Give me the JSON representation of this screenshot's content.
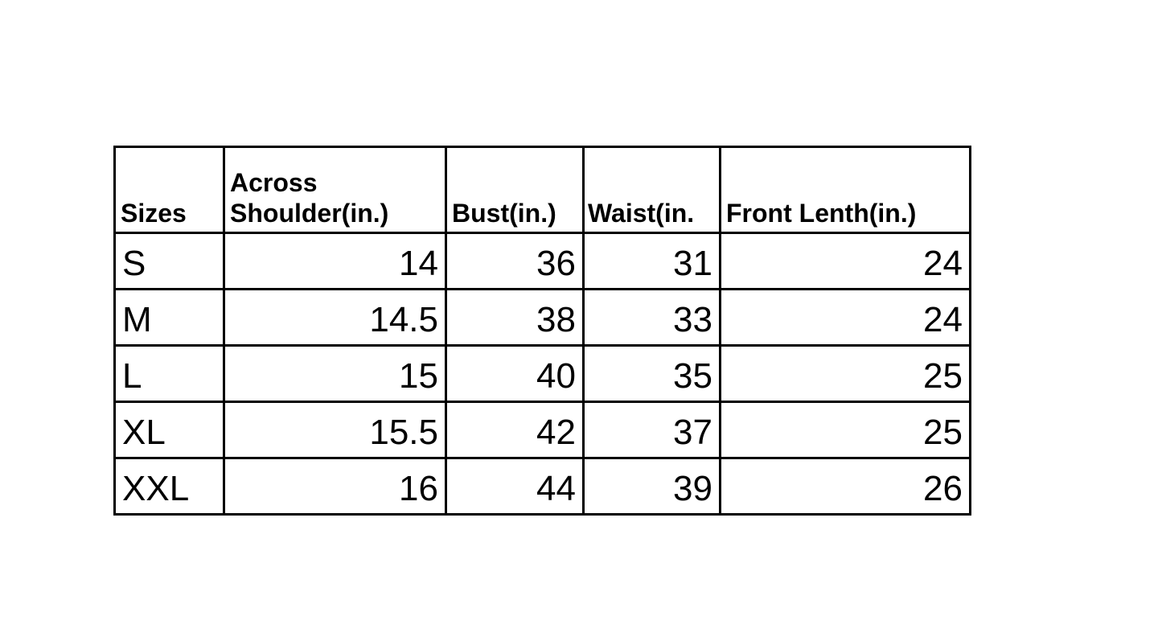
{
  "table": {
    "headers": [
      {
        "lines": [
          "Sizes"
        ]
      },
      {
        "lines": [
          "Across",
          "Shoulder(in.)"
        ]
      },
      {
        "lines": [
          "Bust(in.)"
        ]
      },
      {
        "lines": [
          "Waist(in."
        ]
      },
      {
        "lines": [
          "Front Lenth(in.)"
        ]
      }
    ],
    "rows": [
      [
        "S",
        "14",
        "36",
        "31",
        "24"
      ],
      [
        "M",
        "14.5",
        "38",
        "33",
        "24"
      ],
      [
        "L",
        "15",
        "40",
        "35",
        "25"
      ],
      [
        "XL",
        "15.5",
        "42",
        "37",
        "25"
      ],
      [
        "XXL",
        "16",
        "44",
        "39",
        "26"
      ]
    ]
  }
}
